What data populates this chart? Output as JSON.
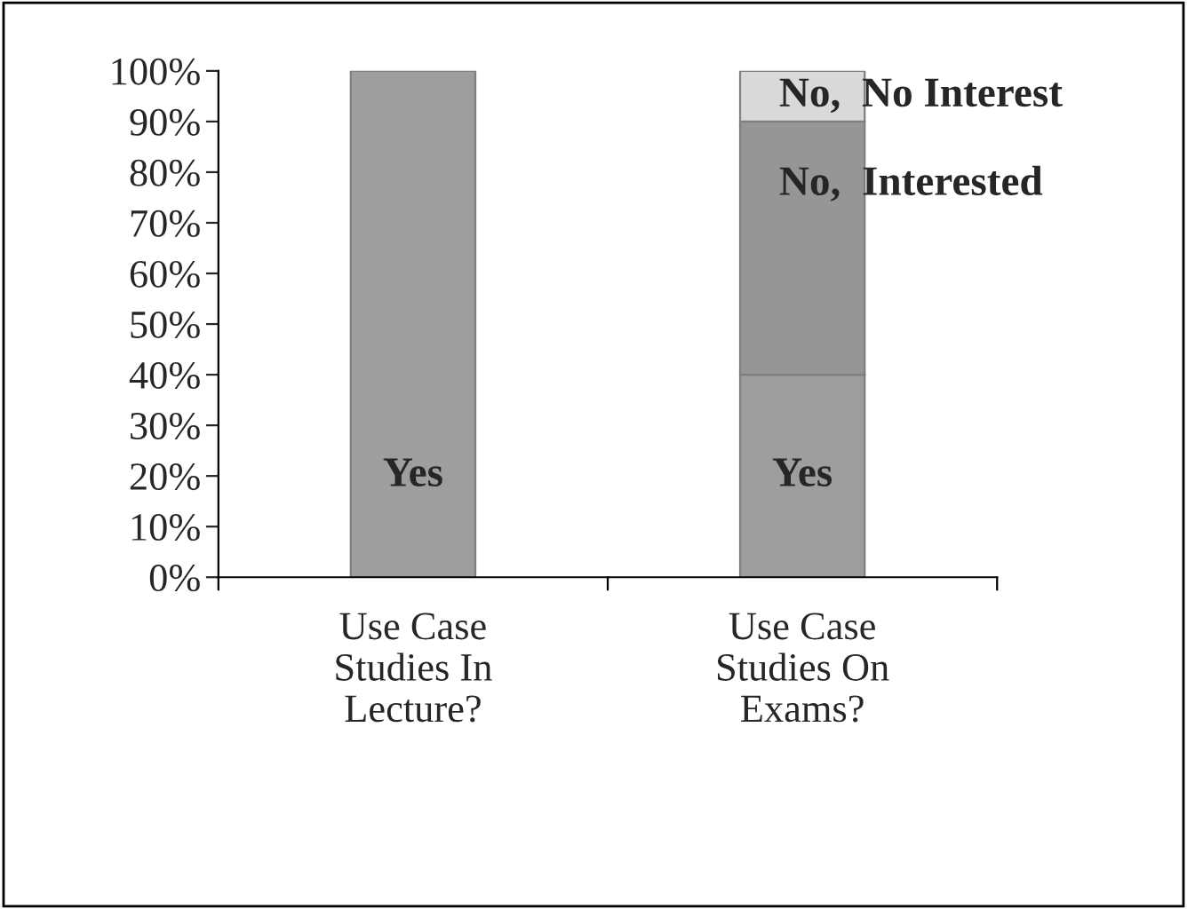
{
  "chart_data": {
    "type": "bar",
    "stacked": true,
    "legend": false,
    "grid": false,
    "categories": [
      "Use Case\nStudies In\nLecture?",
      "Use Case\nStudies On\nExams?"
    ],
    "series": [
      {
        "name": "Yes",
        "color": "#9e9e9e",
        "values": [
          100,
          40
        ]
      },
      {
        "name": "No,  Interested",
        "color": "#969696",
        "values": [
          null,
          50
        ]
      },
      {
        "name": "No,  No Interest",
        "color": "#d9d9d9",
        "values": [
          null,
          10
        ]
      }
    ],
    "ylim": [
      0,
      100
    ],
    "yticks": [
      {
        "value": 0,
        "label": "0%"
      },
      {
        "value": 10,
        "label": "10%"
      },
      {
        "value": 20,
        "label": "20%"
      },
      {
        "value": 30,
        "label": "30%"
      },
      {
        "value": 40,
        "label": "40%"
      },
      {
        "value": 50,
        "label": "50%"
      },
      {
        "value": 60,
        "label": "60%"
      },
      {
        "value": 70,
        "label": "70%"
      },
      {
        "value": 80,
        "label": "80%"
      },
      {
        "value": 90,
        "label": "90%"
      },
      {
        "value": 100,
        "label": "100%"
      }
    ]
  }
}
